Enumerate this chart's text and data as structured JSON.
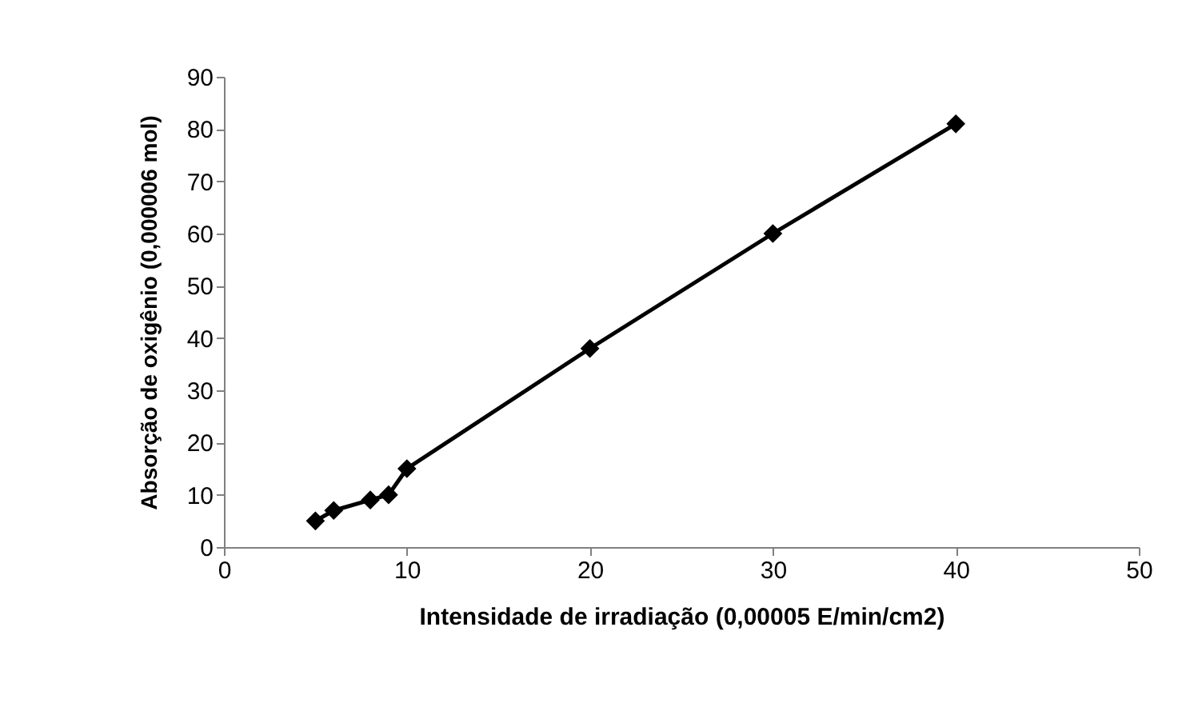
{
  "chart_data": {
    "type": "line",
    "xlabel": "Intensidade de irradiação (0,00005 E/min/cm2)",
    "ylabel": "Absorção de oxigênio (0,000006 mol)",
    "x": [
      5,
      6,
      8,
      9,
      10,
      20,
      30,
      40
    ],
    "series": [
      {
        "color": "#000000",
        "values": [
          5,
          7,
          9,
          10,
          15,
          38,
          60,
          81
        ]
      }
    ],
    "xlim": [
      0,
      50
    ],
    "xticks": [
      0,
      10,
      20,
      30,
      40,
      50
    ],
    "ylim": [
      0,
      90
    ],
    "yticks": [
      0,
      10,
      20,
      30,
      40,
      50,
      60,
      70,
      80,
      90
    ],
    "marker": "diamond",
    "line_style": "solid",
    "grid": false,
    "legend": false
  }
}
